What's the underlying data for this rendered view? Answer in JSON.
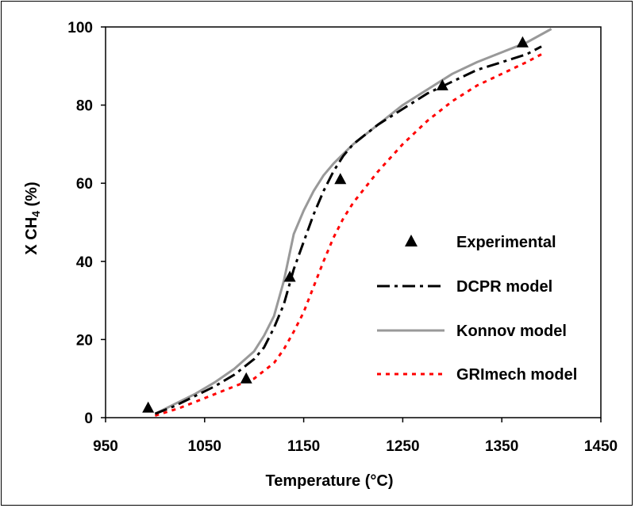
{
  "chart_data": {
    "type": "line",
    "xlabel": "Temperature (°C)",
    "ylabel": {
      "prefix": "X CH",
      "subscript": "4",
      "suffix": " (%)"
    },
    "xlim": [
      950,
      1450
    ],
    "ylim": [
      0,
      100
    ],
    "xticks": [
      950,
      1050,
      1150,
      1250,
      1350,
      1450
    ],
    "yticks": [
      0,
      20,
      40,
      60,
      80,
      100
    ],
    "grid": false,
    "legend_position": "inside-right",
    "series": [
      {
        "name": "Experimental",
        "kind": "marker",
        "marker": "triangle",
        "color": "#000000",
        "x": [
          993,
          1092,
          1136,
          1187,
          1290,
          1371
        ],
        "y": [
          2.5,
          10,
          36,
          61,
          85,
          96
        ]
      },
      {
        "name": "DCPR model",
        "kind": "line",
        "style": "dash-dot",
        "color": "#000000",
        "x": [
          1000,
          1020,
          1040,
          1060,
          1080,
          1100,
          1110,
          1120,
          1130,
          1140,
          1150,
          1160,
          1170,
          1180,
          1190,
          1200,
          1225,
          1250,
          1275,
          1300,
          1325,
          1350,
          1375,
          1390
        ],
        "y": [
          1,
          3,
          5.5,
          8,
          11,
          15,
          18,
          23,
          29,
          38,
          45,
          52,
          58,
          63,
          67,
          70,
          75,
          79,
          83,
          86,
          89,
          91,
          93,
          95
        ]
      },
      {
        "name": "Konnov model",
        "kind": "line",
        "style": "solid",
        "color": "#999999",
        "x": [
          1000,
          1020,
          1040,
          1060,
          1080,
          1100,
          1110,
          1120,
          1130,
          1140,
          1150,
          1160,
          1170,
          1180,
          1190,
          1200,
          1225,
          1250,
          1275,
          1300,
          1325,
          1350,
          1375,
          1400
        ],
        "y": [
          1,
          3.5,
          6,
          9,
          12.5,
          17,
          21,
          26,
          35,
          47,
          53,
          58,
          62,
          65,
          67.5,
          70,
          75,
          80,
          84,
          88,
          91,
          93.5,
          96,
          99.5
        ]
      },
      {
        "name": "GRImech model",
        "kind": "line",
        "style": "dotted",
        "color": "#ff0000",
        "x": [
          1000,
          1025,
          1050,
          1075,
          1100,
          1120,
          1130,
          1140,
          1150,
          1160,
          1170,
          1180,
          1190,
          1200,
          1225,
          1250,
          1275,
          1300,
          1325,
          1350,
          1375,
          1390
        ],
        "y": [
          0.5,
          2.5,
          5,
          7.5,
          10,
          14,
          17.5,
          22,
          27,
          33.5,
          40,
          46,
          51,
          55,
          63,
          70,
          76,
          81,
          85,
          88,
          91,
          93
        ]
      }
    ]
  }
}
